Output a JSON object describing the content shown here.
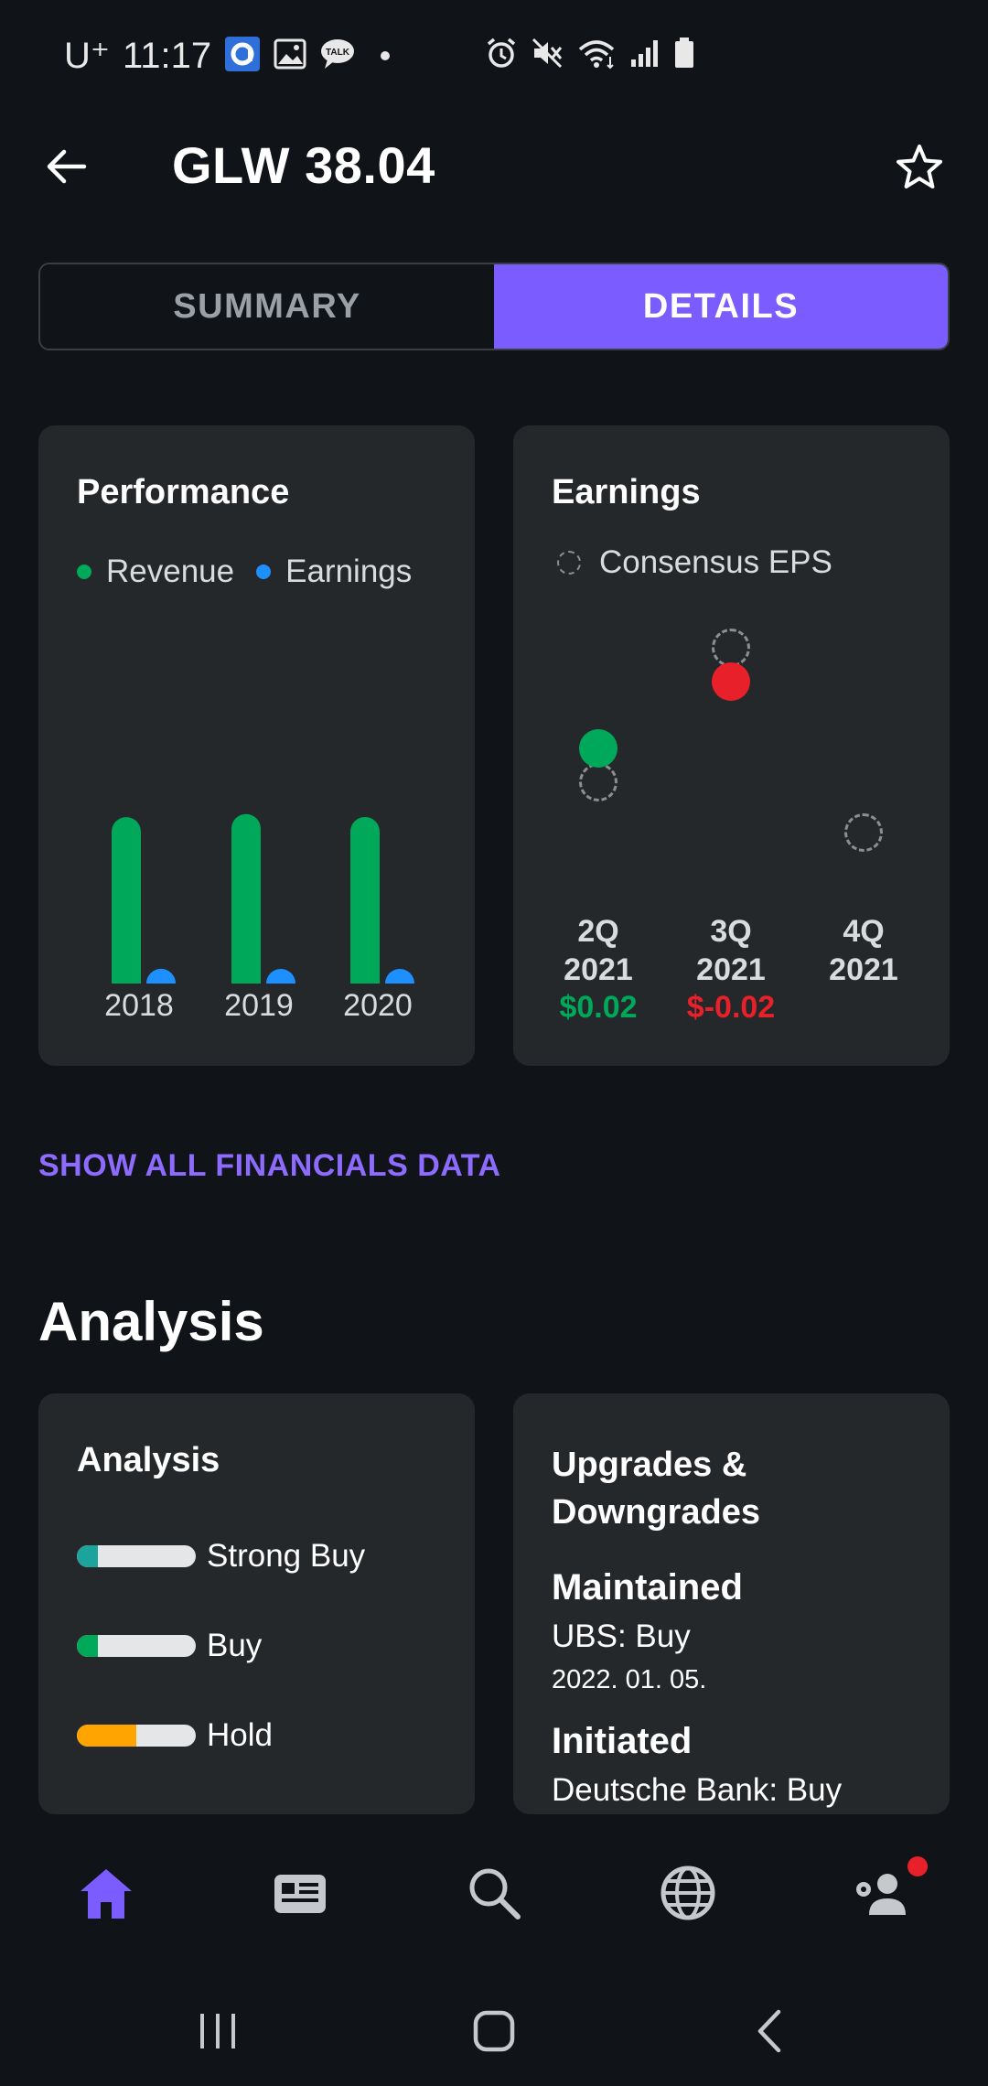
{
  "status_bar": {
    "carrier": "U⁺",
    "time": "11:17",
    "notification_icons": [
      "app-icon",
      "image-icon",
      "talk-icon",
      "dot-icon"
    ],
    "system_icons": [
      "alarm-icon",
      "mute-icon",
      "wifi-icon",
      "signal-icon",
      "battery-icon"
    ],
    "talk_label": "TALK"
  },
  "header": {
    "title": "GLW 38.04"
  },
  "tabs": [
    {
      "label": "SUMMARY",
      "active": false
    },
    {
      "label": "DETAILS",
      "active": true
    }
  ],
  "performance": {
    "title": "Performance",
    "legend": [
      {
        "label": "Revenue",
        "color": "#00a85a"
      },
      {
        "label": "Earnings",
        "color": "#1e8fff"
      }
    ]
  },
  "earnings": {
    "title": "Earnings",
    "legend_label": "Consensus EPS",
    "quarters": [
      {
        "label_line1": "2Q",
        "label_line2": "2021",
        "value": "$0.02",
        "value_color": "#00a85a"
      },
      {
        "label_line1": "3Q",
        "label_line2": "2021",
        "value": "$-0.02",
        "value_color": "#e8202a"
      },
      {
        "label_line1": "4Q",
        "label_line2": "2021",
        "value": "",
        "value_color": "#ffffff"
      }
    ]
  },
  "chart_data": [
    {
      "type": "bar",
      "categories": [
        "2018",
        "2019",
        "2020"
      ],
      "series": [
        {
          "name": "Revenue",
          "values": [
            11.29,
            11.5,
            11.3
          ]
        },
        {
          "name": "Earnings",
          "values": [
            1.0,
            0.96,
            0.5
          ]
        }
      ],
      "xlabel": "",
      "ylabel": "",
      "ylim": [
        0,
        18
      ]
    },
    {
      "type": "scatter",
      "categories": [
        "2Q 2021",
        "3Q 2021",
        "4Q 2021"
      ],
      "series": [
        {
          "name": "Consensus EPS",
          "values": [
            0.56,
            0.64,
            0.53
          ]
        },
        {
          "name": "Actual EPS",
          "values": [
            0.58,
            0.62,
            null
          ]
        }
      ],
      "ylim": [
        0.5,
        0.68
      ]
    }
  ],
  "show_all_link": "SHOW ALL FINANCIALS DATA",
  "analysis_section": {
    "title": "Analysis"
  },
  "analysis_card": {
    "title": "Analysis",
    "ratings": [
      {
        "label": "Strong Buy",
        "fraction": 0.18,
        "color": "#1ba39c"
      },
      {
        "label": "Buy",
        "fraction": 0.18,
        "color": "#00a85a"
      },
      {
        "label": "Hold",
        "fraction": 0.5,
        "color": "#ffa400"
      }
    ]
  },
  "upgrades_card": {
    "title": "Upgrades & Downgrades",
    "entries": [
      {
        "action": "Maintained",
        "firm": "UBS: Buy",
        "date": "2022. 01. 05."
      },
      {
        "action": "Initiated",
        "firm": "Deutsche Bank: Buy",
        "date": ""
      }
    ]
  },
  "bottom_nav": [
    {
      "name": "home",
      "active": true
    },
    {
      "name": "news",
      "active": false
    },
    {
      "name": "search",
      "active": false
    },
    {
      "name": "markets",
      "active": false
    },
    {
      "name": "account",
      "active": false,
      "badge": true
    }
  ],
  "colors": {
    "accent": "#7b5cff",
    "positive": "#00a85a",
    "negative": "#e8202a",
    "earnings_blue": "#1e8fff",
    "background": "#101418",
    "card": "#25282b"
  }
}
